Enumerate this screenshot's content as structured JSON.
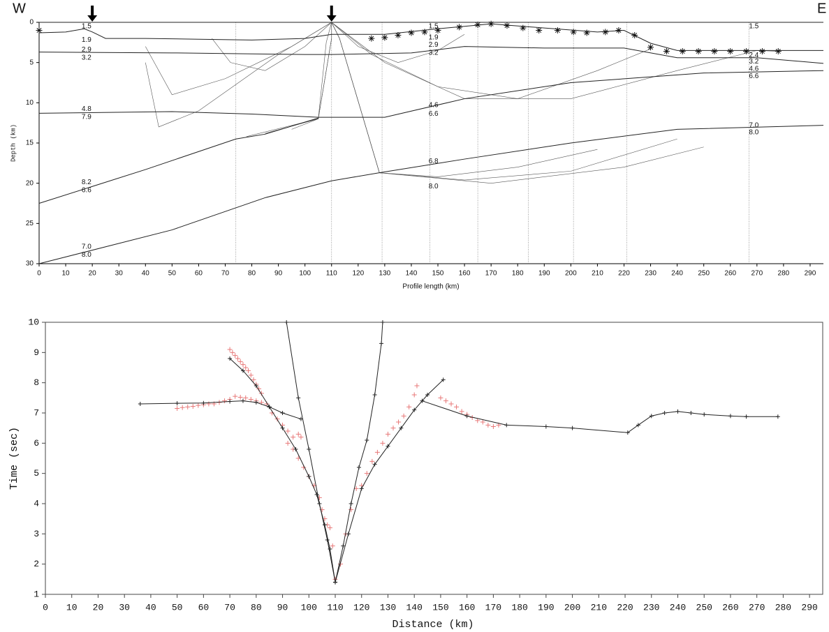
{
  "chart_data": [
    {
      "type": "line",
      "corner_left": "W",
      "corner_right": "E",
      "xlabel": "Profile length (km)",
      "ylabel": "Depth (km)",
      "xlim": [
        0,
        295
      ],
      "ylim": [
        0,
        30
      ],
      "xticks": [
        0,
        10,
        20,
        30,
        40,
        50,
        60,
        70,
        80,
        90,
        100,
        110,
        120,
        130,
        140,
        150,
        160,
        170,
        180,
        190,
        200,
        210,
        220,
        230,
        240,
        250,
        260,
        270,
        280,
        290
      ],
      "yticks": [
        0,
        5,
        10,
        15,
        20,
        25,
        30
      ],
      "shots": [
        20,
        110
      ],
      "vlines": [
        74,
        110,
        129,
        147,
        165,
        184,
        201,
        221,
        267
      ],
      "boundaries": [
        {
          "color": "#222222",
          "x": [
            0,
            295
          ],
          "values": [
            0,
            0
          ]
        },
        {
          "color": "#222222",
          "x": [
            0,
            10,
            17,
            20,
            25,
            40,
            60,
            80,
            100,
            110,
            130,
            150,
            170,
            190,
            210,
            220,
            230,
            240,
            295
          ],
          "values": [
            1.3,
            1.2,
            0.8,
            1.2,
            2.0,
            2.0,
            2.1,
            2.2,
            2.0,
            1.5,
            1.5,
            0.8,
            0.2,
            0.7,
            1.2,
            1.0,
            2.6,
            3.5,
            3.5
          ]
        },
        {
          "color": "#222222",
          "x": [
            0,
            50,
            100,
            110,
            140,
            160,
            190,
            220,
            240,
            270,
            295
          ],
          "values": [
            3.7,
            3.8,
            4.0,
            4.0,
            3.8,
            3.0,
            3.2,
            3.2,
            4.4,
            4.4,
            5.1
          ]
        },
        {
          "color": "#222222",
          "x": [
            0,
            50,
            80,
            105,
            130,
            160,
            200,
            250,
            295
          ],
          "values": [
            11.3,
            11.1,
            11.4,
            11.8,
            11.8,
            9.5,
            7.5,
            6.3,
            6.0
          ]
        },
        {
          "color": "#222222",
          "x": [
            0,
            40,
            74,
            85,
            105
          ],
          "values": [
            22.5,
            18.3,
            14.5,
            13.9,
            11.9
          ]
        },
        {
          "color": "#222222",
          "x": [
            0,
            50,
            85,
            110,
            128,
            160,
            200,
            240,
            295
          ],
          "values": [
            30,
            25.8,
            21.8,
            19.7,
            18.7,
            17,
            15,
            13.3,
            12.8
          ]
        }
      ],
      "rays": [
        {
          "color": "#555555",
          "x": [
            110,
            110,
            105,
            85
          ],
          "values": [
            0,
            2,
            12,
            13.8
          ]
        },
        {
          "color": "#555555",
          "x": [
            110,
            110,
            105,
            78
          ],
          "values": [
            0,
            2,
            12,
            14.2
          ]
        },
        {
          "color": "#555555",
          "x": [
            110,
            108,
            105,
            95
          ],
          "values": [
            0,
            2.5,
            12,
            13.3
          ]
        },
        {
          "color": "#555555",
          "x": [
            110,
            113,
            128,
            170,
            220,
            250
          ],
          "values": [
            0,
            2,
            18.7,
            20,
            18,
            15.5
          ]
        },
        {
          "color": "#555555",
          "x": [
            110,
            113,
            128,
            160,
            200,
            240
          ],
          "values": [
            0,
            2,
            18.7,
            19.6,
            18.5,
            14.5
          ]
        },
        {
          "color": "#555555",
          "x": [
            110,
            113,
            128,
            150,
            180,
            210
          ],
          "values": [
            0,
            2,
            18.7,
            19.2,
            18,
            15.8
          ]
        },
        {
          "color": "#555555",
          "x": [
            110,
            130,
            160,
            200,
            240,
            270,
            278
          ],
          "values": [
            0,
            5,
            9.5,
            9.5,
            6,
            3.5,
            3.6
          ]
        },
        {
          "color": "#555555",
          "x": [
            110,
            125,
            150,
            180,
            210,
            230
          ],
          "values": [
            0,
            4,
            8,
            9.5,
            6,
            3.3
          ]
        },
        {
          "color": "#555555",
          "x": [
            110,
            120,
            135,
            150,
            160
          ],
          "values": [
            0,
            3,
            5,
            3.5,
            1.5
          ]
        },
        {
          "color": "#555555",
          "x": [
            110,
            95,
            70,
            50,
            40
          ],
          "values": [
            0,
            3,
            7,
            9,
            3
          ]
        },
        {
          "color": "#555555",
          "x": [
            110,
            100,
            85,
            72,
            65
          ],
          "values": [
            0,
            3,
            6,
            5,
            2
          ]
        },
        {
          "color": "#555555",
          "x": [
            110,
            90,
            60,
            45,
            40
          ],
          "values": [
            0,
            4,
            11,
            13,
            5
          ]
        }
      ],
      "stations": {
        "x": [
          0,
          125,
          130,
          135,
          140,
          145,
          150,
          158,
          165,
          170,
          176,
          182,
          188,
          195,
          201,
          206,
          213,
          218,
          224,
          230,
          236,
          242,
          248,
          254,
          260,
          266,
          272,
          278
        ],
        "values": [
          1.0,
          2.0,
          1.9,
          1.6,
          1.3,
          1.2,
          1.0,
          0.6,
          0.3,
          0.2,
          0.4,
          0.7,
          1.0,
          1.0,
          1.2,
          1.3,
          1.2,
          1.0,
          1.6,
          3.1,
          3.6,
          3.6,
          3.6,
          3.6,
          3.6,
          3.6,
          3.6,
          3.6
        ]
      },
      "annotations": [
        {
          "text": "1.5",
          "x": 16,
          "y": 0.5
        },
        {
          "text": "1.9",
          "x": 16,
          "y": 2.2
        },
        {
          "text": "2.9",
          "x": 16,
          "y": 3.4
        },
        {
          "text": "3.2",
          "x": 16,
          "y": 4.4
        },
        {
          "text": "4.8",
          "x": 16,
          "y": 10.8
        },
        {
          "text": "7.9",
          "x": 16,
          "y": 11.8
        },
        {
          "text": "8.2",
          "x": 16,
          "y": 19.9
        },
        {
          "text": "6.6",
          "x": 16,
          "y": 20.9
        },
        {
          "text": "7.0",
          "x": 16,
          "y": 27.9
        },
        {
          "text": "8.0",
          "x": 16,
          "y": 28.9
        },
        {
          "text": "1.5",
          "x": 146.5,
          "y": 0.5
        },
        {
          "text": "1.9",
          "x": 146.5,
          "y": 1.9
        },
        {
          "text": "2.9",
          "x": 146.5,
          "y": 2.8
        },
        {
          "text": "3.2",
          "x": 146.5,
          "y": 3.8
        },
        {
          "text": "4.6",
          "x": 146.5,
          "y": 10.3
        },
        {
          "text": "6.6",
          "x": 146.5,
          "y": 11.4
        },
        {
          "text": "6.8",
          "x": 146.5,
          "y": 17.3
        },
        {
          "text": "8.0",
          "x": 146.5,
          "y": 20.4
        },
        {
          "text": "1.5",
          "x": 267,
          "y": 0.5
        },
        {
          "text": "2.4",
          "x": 267,
          "y": 4.1
        },
        {
          "text": "3.2",
          "x": 267,
          "y": 4.9
        },
        {
          "text": "4.6",
          "x": 267,
          "y": 5.8
        },
        {
          "text": "6.6",
          "x": 267,
          "y": 6.7
        },
        {
          "text": "7.0",
          "x": 267,
          "y": 12.8
        },
        {
          "text": "8.0",
          "x": 267,
          "y": 13.7
        }
      ]
    },
    {
      "type": "scatter",
      "xlabel": "Distance (km)",
      "ylabel": "Time (sec)",
      "xlim": [
        0,
        295
      ],
      "ylim": [
        1,
        10
      ],
      "xticks": [
        0,
        10,
        20,
        30,
        40,
        50,
        60,
        70,
        80,
        90,
        100,
        110,
        120,
        130,
        140,
        150,
        160,
        170,
        180,
        190,
        200,
        210,
        220,
        230,
        240,
        250,
        260,
        270,
        280,
        290
      ],
      "yticks": [
        1,
        2,
        3,
        4,
        5,
        6,
        7,
        8,
        9,
        10
      ],
      "computed": [
        {
          "color": "#222222",
          "x": [
            36,
            50,
            60,
            70,
            75,
            80,
            85,
            90,
            97
          ],
          "values": [
            7.3,
            7.32,
            7.33,
            7.38,
            7.4,
            7.35,
            7.2,
            7.0,
            6.8
          ]
        },
        {
          "color": "#222222",
          "x": [
            70,
            75,
            80,
            85,
            90,
            95,
            100,
            103,
            106,
            108,
            110
          ],
          "values": [
            8.8,
            8.4,
            7.9,
            7.2,
            6.5,
            5.8,
            4.9,
            4.3,
            3.3,
            2.5,
            1.4
          ]
        },
        {
          "color": "#222222",
          "x": [
            91.5,
            96,
            100,
            104,
            107,
            110
          ],
          "values": [
            10,
            7.5,
            5.8,
            4.0,
            2.8,
            1.4
          ]
        },
        {
          "color": "#222222",
          "x": [
            110,
            113,
            116,
            119,
            122,
            125,
            127.5,
            128
          ],
          "values": [
            1.4,
            2.6,
            4.0,
            5.2,
            6.1,
            7.6,
            9.3,
            10
          ]
        },
        {
          "color": "#222222",
          "x": [
            110,
            115,
            120,
            125,
            130,
            135,
            140,
            145,
            151
          ],
          "values": [
            1.4,
            3.0,
            4.5,
            5.3,
            5.9,
            6.5,
            7.1,
            7.6,
            8.1
          ]
        },
        {
          "color": "#222222",
          "x": [
            143,
            160,
            175,
            190,
            200,
            221,
            225,
            230,
            235,
            240,
            245,
            250,
            260,
            266,
            278
          ],
          "values": [
            7.4,
            6.9,
            6.6,
            6.55,
            6.5,
            6.35,
            6.6,
            6.9,
            7.0,
            7.05,
            7.0,
            6.95,
            6.9,
            6.88,
            6.88
          ]
        }
      ],
      "observed": {
        "color": "#e87878",
        "x": [
          50,
          52,
          54,
          56,
          58,
          60,
          62,
          64,
          66,
          68,
          70,
          72,
          74,
          76,
          78,
          80,
          82,
          84,
          70,
          71,
          72,
          73,
          74,
          75,
          76,
          77,
          78,
          79,
          80,
          81,
          82,
          86,
          88,
          90,
          92,
          94,
          96,
          97,
          92,
          94,
          96,
          98,
          100,
          102,
          104,
          105,
          106,
          107,
          108,
          109,
          110,
          112,
          114,
          116,
          118,
          120,
          122,
          124,
          126,
          128,
          130,
          132,
          134,
          136,
          138,
          140,
          141,
          150,
          152,
          154,
          156,
          158,
          160,
          162,
          164,
          166,
          168,
          170,
          172
        ],
        "values": [
          7.15,
          7.18,
          7.2,
          7.22,
          7.25,
          7.27,
          7.3,
          7.3,
          7.35,
          7.4,
          7.45,
          7.55,
          7.52,
          7.5,
          7.45,
          7.4,
          7.35,
          7.3,
          9.1,
          9.0,
          8.9,
          8.8,
          8.7,
          8.6,
          8.5,
          8.4,
          8.25,
          8.1,
          7.95,
          7.8,
          7.65,
          7.0,
          6.8,
          6.6,
          6.4,
          6.2,
          6.3,
          6.2,
          6.0,
          5.8,
          5.5,
          5.2,
          4.9,
          4.6,
          4.2,
          3.8,
          3.5,
          3.3,
          3.2,
          2.6,
          1.5,
          2.0,
          3.0,
          3.8,
          4.5,
          4.6,
          5.0,
          5.4,
          5.7,
          6.0,
          6.3,
          6.5,
          6.7,
          6.9,
          7.2,
          7.6,
          7.9,
          7.5,
          7.4,
          7.3,
          7.2,
          7.05,
          6.95,
          6.85,
          6.75,
          6.7,
          6.6,
          6.55,
          6.6
        ]
      }
    }
  ]
}
